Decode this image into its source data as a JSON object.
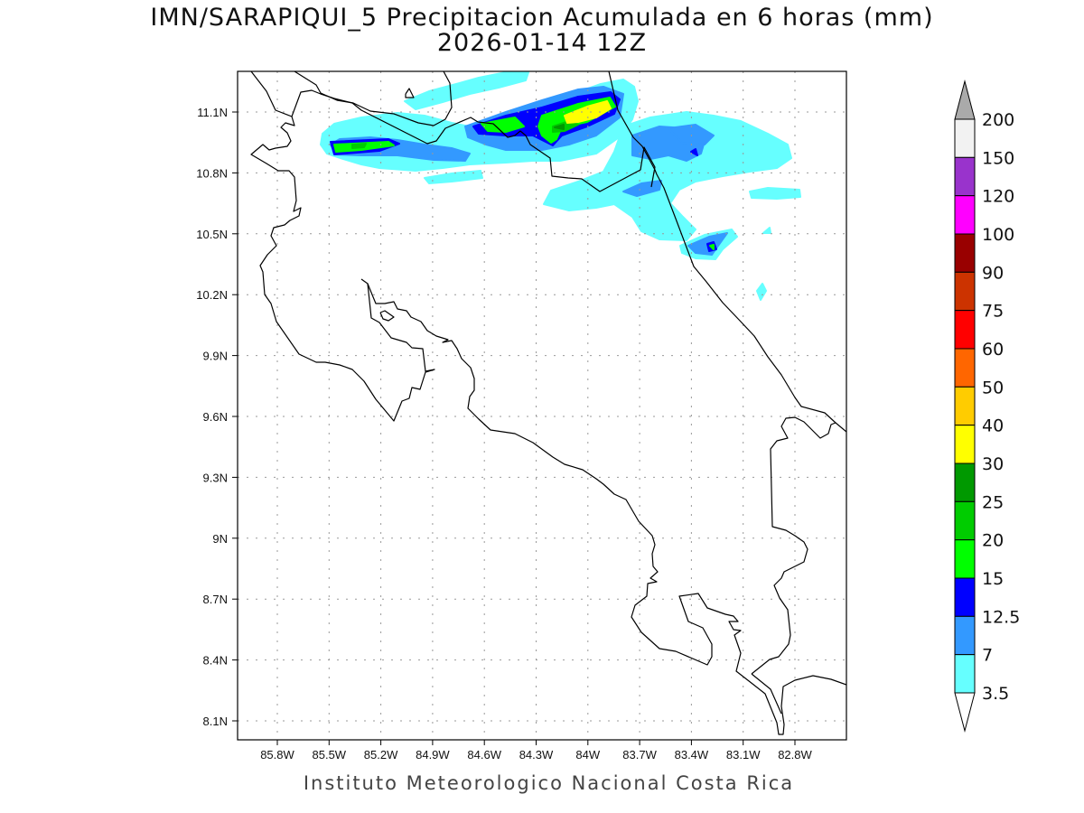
{
  "title": {
    "line1": "IMN/SARAPIQUI_5 Precipitacion Acumulada en 6 horas (mm)",
    "line2": "2026-01-14 12Z"
  },
  "footer": "Instituto Meteorologico Nacional Costa Rica",
  "map": {
    "grid": "dotted",
    "lat_ticks": [
      "11.1N",
      "10.8N",
      "10.5N",
      "10.2N",
      "9.9N",
      "9.6N",
      "9.3N",
      "9N",
      "8.7N",
      "8.4N",
      "8.1N"
    ],
    "lon_ticks": [
      "85.8W",
      "85.5W",
      "85.2W",
      "84.9W",
      "84.6W",
      "84.3W",
      "84W",
      "83.7W",
      "83.4W",
      "83.1W",
      "82.8W"
    ]
  },
  "colorbar": {
    "labels": [
      "200",
      "150",
      "120",
      "100",
      "90",
      "75",
      "60",
      "50",
      "40",
      "30",
      "25",
      "20",
      "15",
      "12.5",
      "7",
      "3.5"
    ],
    "colors": [
      "#f2f2f2",
      "#9933cc",
      "#ff00ff",
      "#990000",
      "#cc3300",
      "#ff0000",
      "#ff6600",
      "#ffcc00",
      "#ffff00",
      "#009900",
      "#00cc00",
      "#00ff00",
      "#0000ff",
      "#3399ff",
      "#66ffff"
    ],
    "over_color": "#aaaaaa",
    "under_color": "#ffffff"
  }
}
